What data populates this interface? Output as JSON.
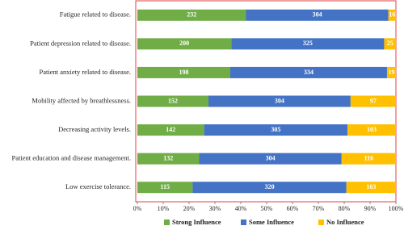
{
  "chart_data": {
    "type": "bar",
    "orientation": "horizontal",
    "stacking": "percent",
    "categories": [
      "Fatigue related to disease.",
      "Patient depression related to disease.",
      "Patient anxiety related to disease.",
      "Mobility affected by breathlessness.",
      "Decreasing activity levels.",
      "Patient education and disease management.",
      "Low exercise tolerance."
    ],
    "series": [
      {
        "name": "Strong Influence",
        "color": "#70ad47",
        "values": [
          232,
          200,
          198,
          152,
          142,
          132,
          115
        ]
      },
      {
        "name": "Some Influence",
        "color": "#4472c4",
        "values": [
          304,
          325,
          334,
          304,
          305,
          304,
          320
        ]
      },
      {
        "name": "No Influence",
        "color": "#ffc000",
        "values": [
          16,
          25,
          19,
          97,
          103,
          116,
          103
        ]
      }
    ],
    "xlim": [
      0,
      100
    ],
    "xticks": [
      {
        "value": 0,
        "label": "0%"
      },
      {
        "value": 10,
        "label": "10%"
      },
      {
        "value": 20,
        "label": "20%"
      },
      {
        "value": 30,
        "label": "30%"
      },
      {
        "value": 40,
        "label": "40%"
      },
      {
        "value": 50,
        "label": "50%"
      },
      {
        "value": 60,
        "label": "60%"
      },
      {
        "value": 70,
        "label": "70%"
      },
      {
        "value": 80,
        "label": "80%"
      },
      {
        "value": 90,
        "label": "90%"
      },
      {
        "value": 100,
        "label": "100%"
      }
    ],
    "legend": "bottom"
  }
}
